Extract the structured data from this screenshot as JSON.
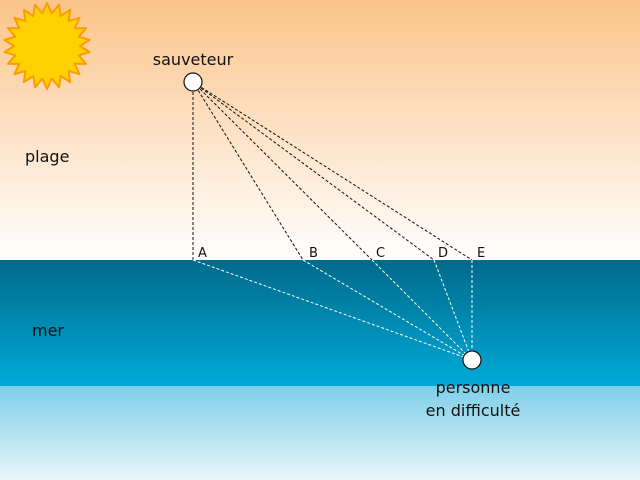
{
  "labels": {
    "lifeguard": "sauveteur",
    "beach": "plage",
    "sea": "mer",
    "person_line1": "personne",
    "person_line2": "en difficulté"
  },
  "points": [
    "A",
    "B",
    "C",
    "D",
    "E"
  ],
  "colors": {
    "sky_top": "#fbc48a",
    "sky_bottom": "#ffffff",
    "sea_top": "#006a8a",
    "sea_bottom": "#00aad8",
    "shallow_top": "#7fcfe8",
    "shallow_bottom": "#e8f6fb",
    "sun": "#ffd100",
    "sun_rays": "#ff9d00",
    "path_land": "#111111",
    "path_water": "#ffffff"
  },
  "icons": {
    "sun": "sun-icon",
    "lifeguard": "circle-marker",
    "person": "circle-marker"
  }
}
